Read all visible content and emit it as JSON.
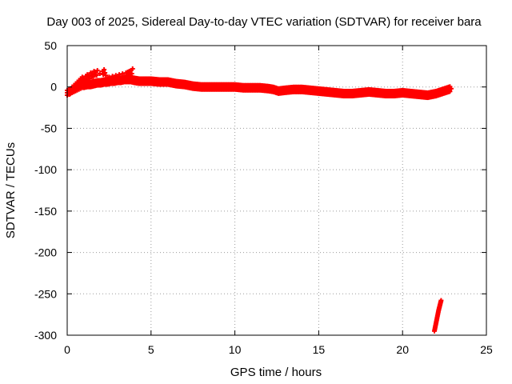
{
  "chart_data": {
    "type": "scatter",
    "title": "Day 003 of 2025, Sidereal Day-to-day VTEC variation (SDTVAR) for receiver bara",
    "xlabel": "GPS time / hours",
    "ylabel": "SDTVAR / TECUs",
    "xlim": [
      0,
      25
    ],
    "ylim": [
      -300,
      50
    ],
    "xticks": [
      0,
      5,
      10,
      15,
      20,
      25
    ],
    "yticks": [
      50,
      0,
      -50,
      -100,
      -150,
      -200,
      -250,
      -300
    ],
    "grid": true,
    "marker": "+",
    "color": "#ff0000",
    "series": [
      {
        "name": "main",
        "x": [
          0.0,
          0.1,
          0.2,
          0.3,
          0.4,
          0.5,
          0.6,
          0.7,
          0.8,
          0.9,
          1.0,
          1.2,
          1.4,
          1.6,
          1.8,
          2.0,
          2.2,
          2.4,
          2.6,
          2.8,
          3.0,
          3.2,
          3.4,
          3.6,
          3.8,
          4.0,
          4.3,
          4.6,
          5.0,
          5.5,
          6.0,
          6.5,
          7.0,
          7.5,
          8.0,
          8.5,
          9.0,
          9.5,
          10.0,
          10.5,
          11.0,
          11.5,
          12.0,
          12.3,
          12.6,
          13.0,
          13.5,
          14.0,
          14.5,
          15.0,
          15.5,
          16.0,
          16.5,
          17.0,
          17.5,
          18.0,
          18.5,
          19.0,
          19.5,
          20.0,
          20.5,
          21.0,
          21.5,
          22.0,
          22.3,
          22.6,
          22.9
        ],
        "y": [
          -7,
          -6,
          -5,
          -4,
          -3,
          -2,
          -1,
          0,
          1,
          2,
          2,
          3,
          3,
          4,
          5,
          5,
          6,
          6,
          7,
          7,
          8,
          8,
          9,
          9,
          9,
          8,
          7,
          7,
          7,
          6,
          6,
          4,
          3,
          1,
          0,
          0,
          0,
          0,
          0,
          -1,
          -1,
          -1,
          -2,
          -3,
          -5,
          -4,
          -3,
          -3,
          -4,
          -5,
          -6,
          -7,
          -8,
          -8,
          -7,
          -6,
          -7,
          -8,
          -8,
          -7,
          -8,
          -9,
          -10,
          -8,
          -6,
          -4,
          -2
        ]
      },
      {
        "name": "scatter-upper",
        "x": [
          0.1,
          0.2,
          0.3,
          0.4,
          0.5,
          0.6,
          0.7,
          0.8,
          0.9,
          1.0,
          1.1,
          1.2,
          1.3,
          1.4,
          1.5,
          1.6,
          1.7,
          1.8,
          2.1,
          2.2,
          2.3,
          2.5,
          2.7,
          2.9,
          3.1,
          3.3,
          3.5,
          3.6,
          3.7,
          3.8,
          3.9
        ],
        "y": [
          -5,
          -3,
          0,
          2,
          4,
          6,
          8,
          10,
          12,
          10,
          13,
          15,
          14,
          17,
          16,
          19,
          18,
          20,
          19,
          21,
          14,
          12,
          13,
          14,
          15,
          16,
          17,
          18,
          19,
          20,
          22
        ]
      },
      {
        "name": "scatter-lower",
        "x": [
          21.9,
          21.95,
          22.0,
          22.05,
          22.1,
          22.15,
          22.2,
          22.25,
          22.3
        ],
        "y": [
          -295,
          -290,
          -285,
          -280,
          -275,
          -270,
          -266,
          -262,
          -258
        ]
      }
    ]
  }
}
